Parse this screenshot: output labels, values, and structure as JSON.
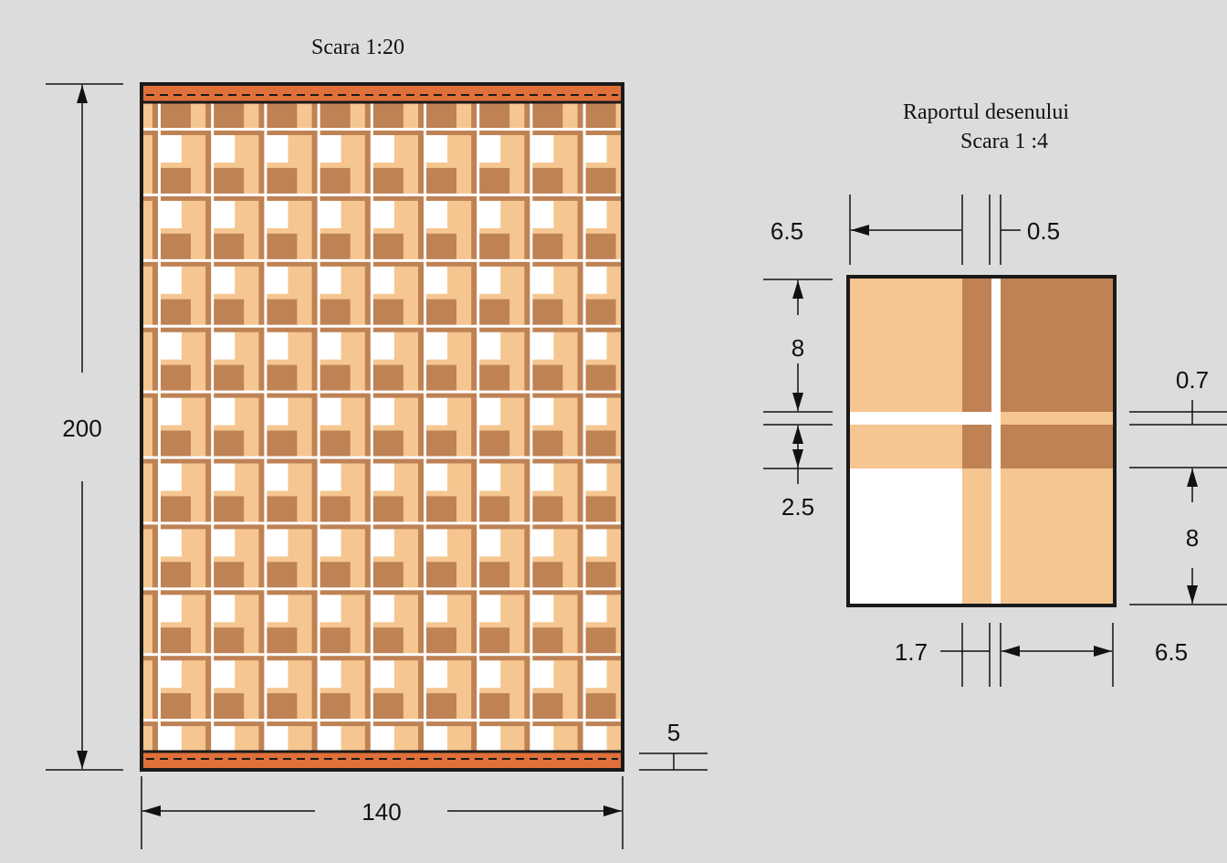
{
  "left": {
    "scale": "Scara 1:20",
    "dim_height": "200",
    "dim_width": "140",
    "dim_hem": "5"
  },
  "right": {
    "title": "Raportul desenului",
    "scale": "Scara 1 :4",
    "dim_top_left": "6.5",
    "dim_top_narrow": "0.5",
    "dim_left_upper": "8",
    "dim_left_lower": "2.5",
    "dim_right_narrow": "0.7",
    "dim_right_lower": "8",
    "dim_bottom_narrow": "1.7",
    "dim_bottom_right": "6.5"
  },
  "colors": {
    "background": "#dcdcdc",
    "light_tan": "#f5c690",
    "dark_brown": "#be8255",
    "white": "#ffffff",
    "hem_orange": "#e0703a",
    "outline": "#1a1a1a"
  }
}
